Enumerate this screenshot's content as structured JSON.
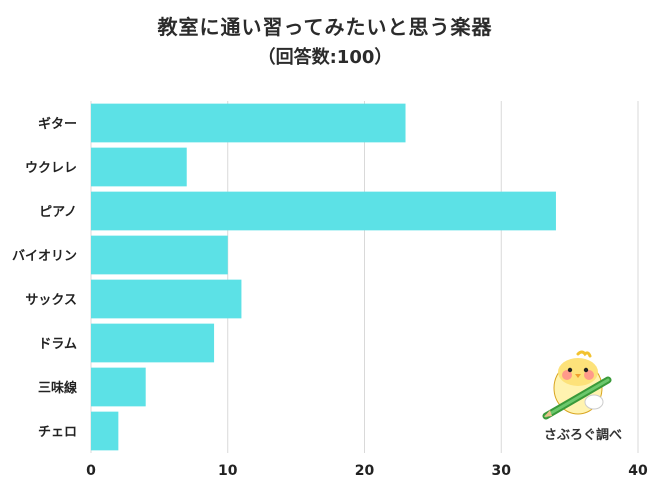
{
  "chart_data": {
    "type": "bar",
    "orientation": "horizontal",
    "title": "教室に通い習ってみたいと思う楽器",
    "subtitle": "（回答数:100）",
    "categories": [
      "ギター",
      "ウクレレ",
      "ピアノ",
      "バイオリン",
      "サックス",
      "ドラム",
      "三味線",
      "チェロ"
    ],
    "values": [
      23,
      7,
      34,
      10,
      11,
      9,
      4,
      2
    ],
    "xlim": [
      0,
      40
    ],
    "xticks": [
      "0",
      "10",
      "20",
      "30",
      "40"
    ],
    "bar_color": "#5ce1e6",
    "grid": true
  },
  "watermark": "さぶろぐ調べ"
}
